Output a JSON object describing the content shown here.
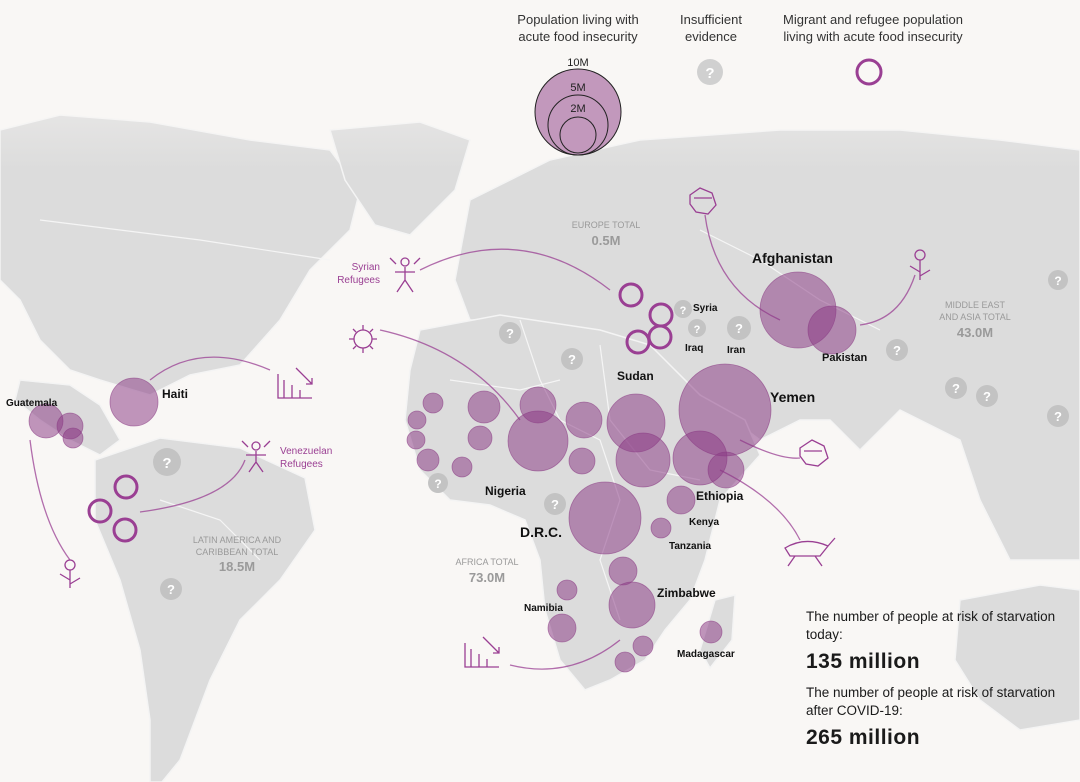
{
  "legend": {
    "population_label": "Population living with acute food insecurity",
    "scale_labels": [
      "10M",
      "5M",
      "2M"
    ],
    "insufficient_label": "Insufficient evidence",
    "migrant_label": "Migrant and refugee population living with acute food insecurity"
  },
  "regions": [
    {
      "id": "europe",
      "title": "EUROPE TOTAL",
      "total": "0.5M"
    },
    {
      "id": "mideast",
      "title": "MIDDLE EAST AND ASIA TOTAL",
      "total": "43.0M"
    },
    {
      "id": "latam",
      "title": "LATIN AMERICA AND CARIBBEAN TOTAL",
      "total": "18.5M"
    },
    {
      "id": "africa",
      "title": "AFRICA TOTAL",
      "total": "73.0M"
    }
  ],
  "countries": [
    "Afghanistan",
    "Pakistan",
    "Yemen",
    "Syria",
    "Iraq",
    "Iran",
    "Sudan",
    "Nigeria",
    "D.R.C.",
    "Ethiopia",
    "Kenya",
    "Tanzania",
    "Zimbabwe",
    "Namibia",
    "Madagascar",
    "Haiti",
    "Guatemala"
  ],
  "refugee_labels": {
    "syrian": "Syrian Refugees",
    "venezuelan": "Venezuelan Refugees"
  },
  "icons": [
    "fist-icon",
    "flower-icon",
    "virus-icon",
    "grasshopper-icon",
    "chart-down-icon",
    "people-arrows-icon",
    "question-icon"
  ],
  "stats": {
    "today_desc": "The number of people at risk of starvation today:",
    "today_value": "135 million",
    "covid_desc": "The number of people at risk of starvation after COVID-19:",
    "covid_value": "265 million"
  },
  "colors": {
    "bubble": "#8b3a84",
    "ring": "#9a3f93",
    "insufficient": "#b4b4b4",
    "land": "#dcdcdc"
  }
}
